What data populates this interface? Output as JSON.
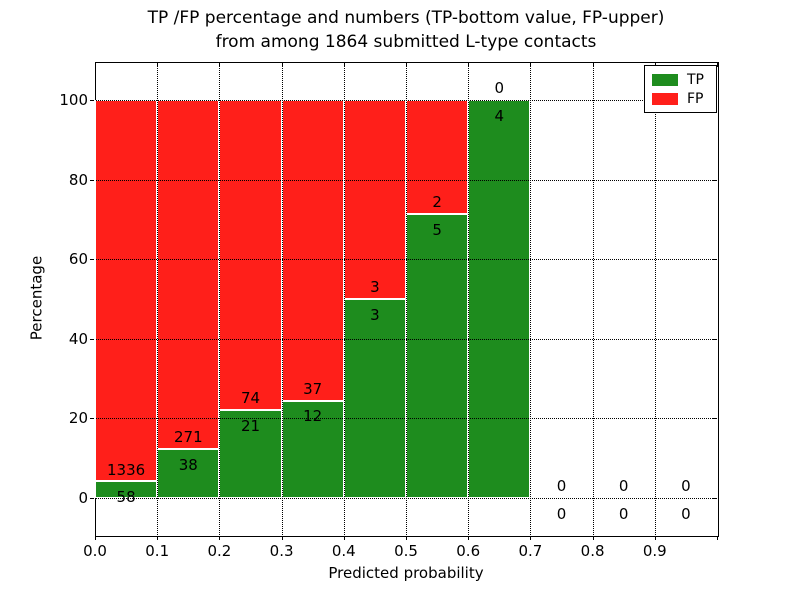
{
  "title": {
    "lines": [
      "TP /FP percentage and numbers (TP-bottom value, FP-upper)",
      "from among 1864 submitted L-type contacts"
    ]
  },
  "chart_data": {
    "type": "bar",
    "stacked": true,
    "title": "TP /FP percentage and numbers (TP-bottom value, FP-upper) from among 1864 submitted L-type contacts",
    "xlabel": "Predicted probability",
    "ylabel": "Percentage",
    "xlim": [
      0.0,
      1.0
    ],
    "ylim": [
      -9.3,
      109.5
    ],
    "grid": "dotted",
    "x_tick_labels": [
      "0.0",
      "0.1",
      "0.2",
      "0.3",
      "0.4",
      "0.5",
      "0.6",
      "0.7",
      "0.8",
      "0.9"
    ],
    "y_ticks": [
      0,
      20,
      40,
      60,
      80,
      100
    ],
    "total_contacts": 1864,
    "colors": {
      "tp": "#1e8c1e",
      "fp": "#ff1f1a"
    },
    "legend": {
      "position": "upper right",
      "items": [
        {
          "label": "TP",
          "color": "#1e8c1e"
        },
        {
          "label": "FP",
          "color": "#ff1f1a"
        }
      ]
    },
    "bins": [
      {
        "x_start": 0.0,
        "x_end": 0.1,
        "tp": 58,
        "fp": 1336,
        "tp_pct": 4.16,
        "fp_pct": 95.84
      },
      {
        "x_start": 0.1,
        "x_end": 0.2,
        "tp": 38,
        "fp": 271,
        "tp_pct": 12.3,
        "fp_pct": 87.7
      },
      {
        "x_start": 0.2,
        "x_end": 0.3,
        "tp": 21,
        "fp": 74,
        "tp_pct": 22.11,
        "fp_pct": 77.89
      },
      {
        "x_start": 0.3,
        "x_end": 0.4,
        "tp": 12,
        "fp": 37,
        "tp_pct": 24.49,
        "fp_pct": 75.51
      },
      {
        "x_start": 0.4,
        "x_end": 0.5,
        "tp": 3,
        "fp": 3,
        "tp_pct": 50.0,
        "fp_pct": 50.0
      },
      {
        "x_start": 0.5,
        "x_end": 0.6,
        "tp": 5,
        "fp": 2,
        "tp_pct": 71.43,
        "fp_pct": 28.57
      },
      {
        "x_start": 0.6,
        "x_end": 0.7,
        "tp": 4,
        "fp": 0,
        "tp_pct": 100.0,
        "fp_pct": 0.0
      },
      {
        "x_start": 0.7,
        "x_end": 0.8,
        "tp": 0,
        "fp": 0,
        "tp_pct": 0.0,
        "fp_pct": 0.0
      },
      {
        "x_start": 0.8,
        "x_end": 0.9,
        "tp": 0,
        "fp": 0,
        "tp_pct": 0.0,
        "fp_pct": 0.0
      },
      {
        "x_start": 0.9,
        "x_end": 1.0,
        "tp": 0,
        "fp": 0,
        "tp_pct": 0.0,
        "fp_pct": 0.0
      }
    ]
  }
}
